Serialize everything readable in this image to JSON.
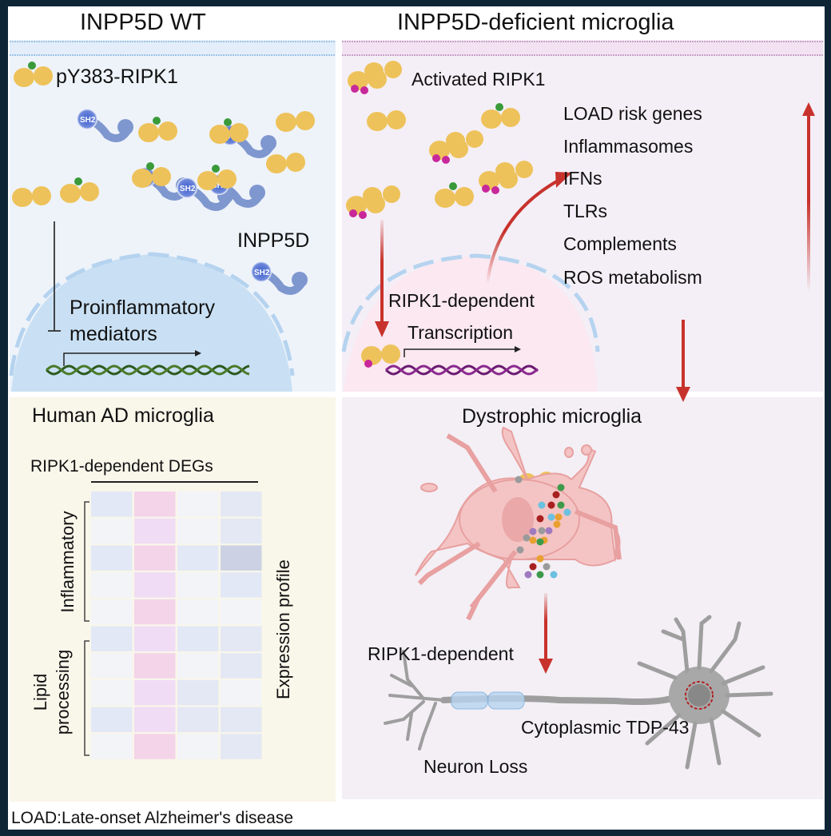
{
  "panels": {
    "wt": {
      "title": "INPP5D WT",
      "protein_label": "pY383-RIPK1",
      "enzyme_label": "INPP5D",
      "domain_label": "SH2",
      "mediators_line1": "Proinflammatory",
      "mediators_line2": "mediators"
    },
    "deficient": {
      "title": "INPP5D-deficient microglia",
      "protein_label": "Activated RIPK1",
      "phospho_label": "P",
      "transcription_line1": "RIPK1-dependent",
      "transcription_line2": "Transcription",
      "upregulated": [
        "LOAD risk genes",
        "Inflammasomes",
        "IFNs",
        "TLRs",
        "Complements",
        "ROS metabolism"
      ]
    },
    "human": {
      "title": "Human AD microglia",
      "heatmap_title": "RIPK1-dependent DEGs",
      "group_inflammatory": "Inflammatory",
      "group_lipid_line1": "Lipid",
      "group_lipid_line2": "processing",
      "side_label": "Expression profile",
      "heatmap_colors": [
        [
          "#e2e8f6",
          "#f4d4e8",
          "#f2f4f8",
          "#e4e8f4"
        ],
        [
          "#f2f4f8",
          "#f0dcf4",
          "#f2f4f8",
          "#e4e8f4"
        ],
        [
          "#e2e8f6",
          "#f4d4e8",
          "#e2e8f6",
          "#ccd2e4"
        ],
        [
          "#f2f4f8",
          "#f0dcf4",
          "#f2f4f8",
          "#e2e8f6"
        ],
        [
          "#f2f4f8",
          "#f4d4e8",
          "#f2f4f8",
          "#f2f4f8"
        ],
        [
          "#e2e8f6",
          "#f0dcf4",
          "#e2e8f6",
          "#e4e8f4"
        ],
        [
          "#f2f4f8",
          "#f4d4e8",
          "#f2f4f8",
          "#e4e8f4"
        ],
        [
          "#f2f4f8",
          "#f0dcf4",
          "#e4e8f4",
          "#f2f4f8"
        ],
        [
          "#e2e8f6",
          "#f0dcf4",
          "#e4e8f4",
          "#e4e8f4"
        ],
        [
          "#f2f4f8",
          "#f4d4e8",
          "#f2f4f8",
          "#e4e8f4"
        ]
      ]
    },
    "dystrophic": {
      "title": "Dystrophic microglia",
      "pathway_label": "RIPK1-dependent",
      "tdp_label": "Cytoplasmic TDP-43",
      "neuron_label": "Neuron Loss"
    }
  },
  "footnote": "LOAD:Late-onset Alzheimer's disease",
  "colors": {
    "border": "#0d2535",
    "arrow": "#c8322c",
    "ripk1": "#eec25a",
    "phospho_green": "#3a9a3a",
    "phospho_magenta": "#c8289a",
    "inpp5d": "#7f97cf",
    "nucleus_wt": "#c9e0f4",
    "nucleus_def": "#fbe6f0",
    "microglia": "#f4c4c4",
    "neuron": "#9e9e9e"
  }
}
